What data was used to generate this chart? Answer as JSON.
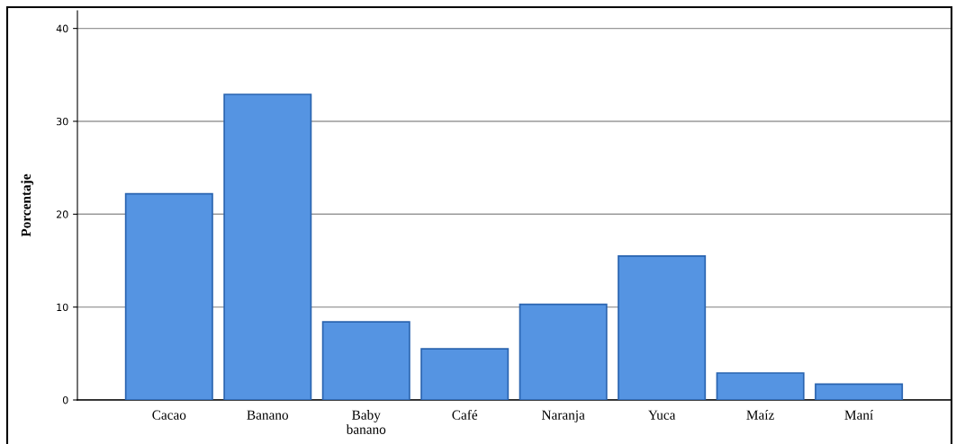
{
  "chart_data": {
    "type": "bar",
    "ylabel": "Porcentaje",
    "categories": [
      "Cacao",
      "Banano",
      "Baby\nbanano",
      "Café",
      "Naranja",
      "Yuca",
      "Maíz",
      "Maní"
    ],
    "values": [
      22.2,
      32.9,
      8.4,
      5.5,
      10.3,
      15.5,
      2.9,
      1.7
    ],
    "color": "#5594e2",
    "ylim": [
      0,
      41.9
    ],
    "yticks": [
      0,
      10,
      20,
      30,
      40
    ],
    "grid": "y"
  }
}
